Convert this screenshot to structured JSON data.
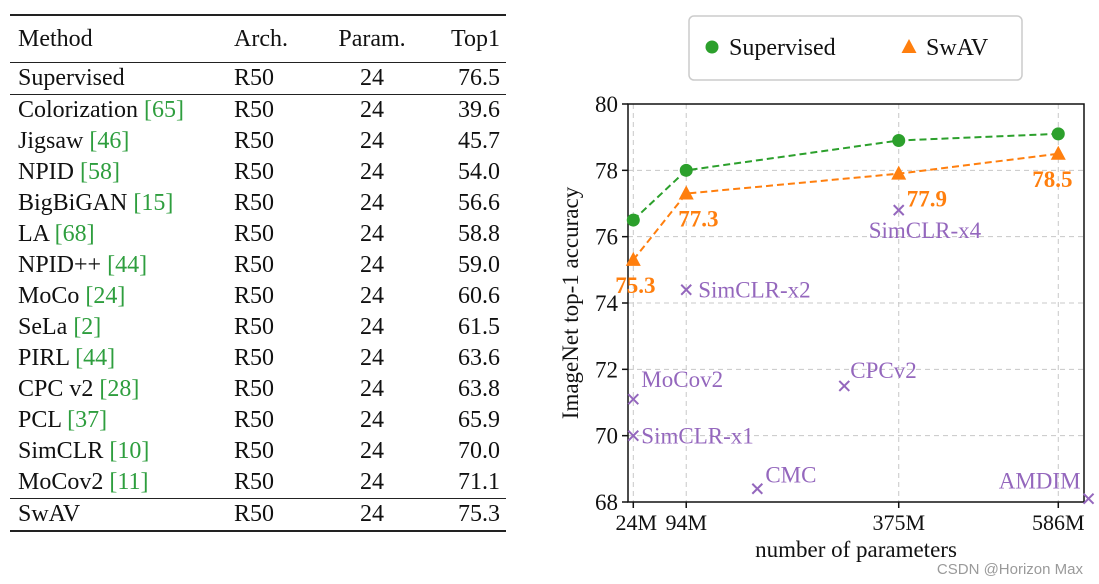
{
  "table": {
    "headers": {
      "method": "Method",
      "arch": "Arch.",
      "param": "Param.",
      "top1": "Top1"
    },
    "supervised_row": {
      "method": "Supervised",
      "arch": "R50",
      "param": "24",
      "top1": "76.5"
    },
    "rows": [
      {
        "method": "Colorization ",
        "ref": "[65]",
        "arch": "R50",
        "param": "24",
        "top1": "39.6"
      },
      {
        "method": "Jigsaw ",
        "ref": "[46]",
        "arch": "R50",
        "param": "24",
        "top1": "45.7"
      },
      {
        "method": "NPID ",
        "ref": "[58]",
        "arch": "R50",
        "param": "24",
        "top1": "54.0"
      },
      {
        "method": "BigBiGAN ",
        "ref": "[15]",
        "arch": "R50",
        "param": "24",
        "top1": "56.6"
      },
      {
        "method": "LA ",
        "ref": "[68]",
        "arch": "R50",
        "param": "24",
        "top1": "58.8"
      },
      {
        "method": "NPID++ ",
        "ref": "[44]",
        "arch": "R50",
        "param": "24",
        "top1": "59.0"
      },
      {
        "method": "MoCo ",
        "ref": "[24]",
        "arch": "R50",
        "param": "24",
        "top1": "60.6"
      },
      {
        "method": "SeLa ",
        "ref": "[2]",
        "arch": "R50",
        "param": "24",
        "top1": "61.5"
      },
      {
        "method": "PIRL ",
        "ref": "[44]",
        "arch": "R50",
        "param": "24",
        "top1": "63.6"
      },
      {
        "method": "CPC v2 ",
        "ref": "[28]",
        "arch": "R50",
        "param": "24",
        "top1": "63.8"
      },
      {
        "method": "PCL ",
        "ref": "[37]",
        "arch": "R50",
        "param": "24",
        "top1": "65.9"
      },
      {
        "method": "SimCLR ",
        "ref": "[10]",
        "arch": "R50",
        "param": "24",
        "top1": "70.0"
      },
      {
        "method": "MoCov2 ",
        "ref": "[11]",
        "arch": "R50",
        "param": "24",
        "top1": "71.1"
      }
    ],
    "swav_row": {
      "method": "SwAV",
      "arch": "R50",
      "param": "24",
      "top1": "75.3"
    }
  },
  "chart_data": {
    "type": "line",
    "xlabel": "number of parameters",
    "ylabel": "ImageNet top-1 accuracy",
    "xlim": [
      17,
      620
    ],
    "ylim": [
      68,
      80
    ],
    "x_ticks": [
      24,
      94,
      375,
      586
    ],
    "x_tick_labels": [
      "24M",
      "94M",
      "375M",
      "586M"
    ],
    "y_ticks": [
      68,
      70,
      72,
      74,
      76,
      78,
      80
    ],
    "y_tick_labels": [
      "68",
      "70",
      "72",
      "74",
      "76",
      "78",
      "80"
    ],
    "grid": true,
    "legend_position": "top-center",
    "legend": [
      "Supervised",
      "SwAV"
    ],
    "colors": {
      "supervised": "#2ca02c",
      "swav": "#ff7f0e",
      "others": "#9467bd",
      "grid": "#c8c8c8"
    },
    "series": [
      {
        "name": "Supervised",
        "key": "supervised",
        "marker": "circle",
        "x": [
          24,
          94,
          375,
          586
        ],
        "y": [
          76.5,
          78.0,
          78.9,
          79.1
        ],
        "labels": []
      },
      {
        "name": "SwAV",
        "key": "swav",
        "marker": "triangle",
        "x": [
          24,
          94,
          375,
          586
        ],
        "y": [
          75.3,
          77.3,
          77.9,
          78.5
        ],
        "labels": [
          "75.3",
          "77.3",
          "77.9",
          "78.5"
        ]
      }
    ],
    "other_methods": [
      {
        "name": "SimCLR-x4",
        "x": 375,
        "y": 76.8
      },
      {
        "name": "SimCLR-x2",
        "x": 94,
        "y": 74.4
      },
      {
        "name": "CPCv2",
        "x": 303,
        "y": 71.5
      },
      {
        "name": "MoCov2",
        "x": 24,
        "y": 71.1
      },
      {
        "name": "SimCLR-x1",
        "x": 24,
        "y": 70.0
      },
      {
        "name": "CMC",
        "x": 188,
        "y": 68.4
      },
      {
        "name": "AMDIM",
        "x": 626,
        "y": 68.1
      }
    ]
  },
  "watermark": "CSDN @Horizon Max"
}
